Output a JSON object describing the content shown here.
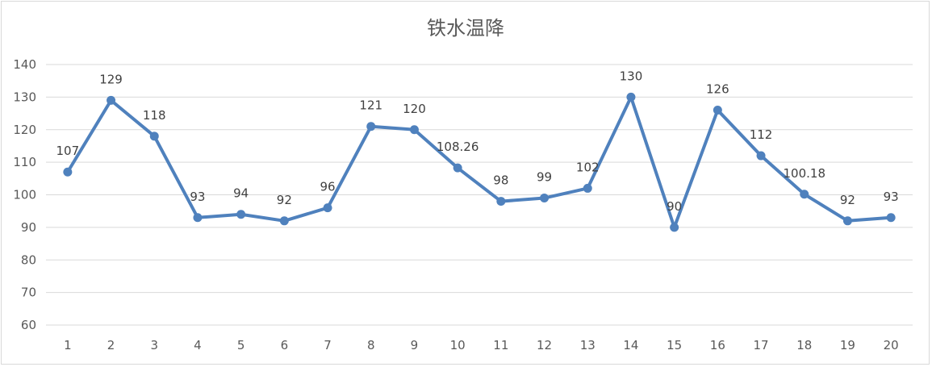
{
  "chart_data": {
    "type": "line",
    "title": "铁水温降",
    "xlabel": "",
    "ylabel": "",
    "categories": [
      "1",
      "2",
      "3",
      "4",
      "5",
      "6",
      "7",
      "8",
      "9",
      "10",
      "11",
      "12",
      "13",
      "14",
      "15",
      "16",
      "17",
      "18",
      "19",
      "20"
    ],
    "series": [
      {
        "values": [
          107,
          129,
          118,
          93,
          94,
          92,
          96,
          121,
          120,
          108.26,
          98,
          99,
          102,
          130,
          90,
          126,
          112,
          100.18,
          92,
          93
        ],
        "labels": [
          "107",
          "129",
          "118",
          "93",
          "94",
          "92",
          "96",
          "121",
          "120",
          "108.26",
          "98",
          "99",
          "102",
          "130",
          "90",
          "126",
          "112",
          "100.18",
          "92",
          "93"
        ]
      }
    ],
    "ylim": [
      60,
      140
    ],
    "yticks": [
      "60",
      "70",
      "80",
      "90",
      "100",
      "110",
      "120",
      "130",
      "140"
    ],
    "grid": true,
    "legend": "none",
    "colors": {
      "line": "#4f81bd",
      "grid": "#d9d9d9",
      "text": "#595959"
    }
  }
}
